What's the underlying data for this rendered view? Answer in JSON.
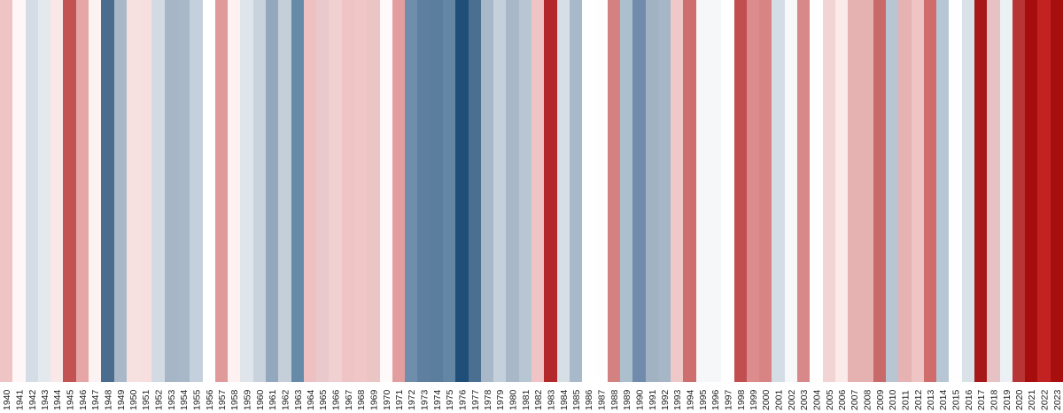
{
  "chart_data": {
    "type": "heatmap",
    "title": "",
    "xlabel": "",
    "ylabel": "",
    "categories": [
      "1940",
      "1941",
      "1942",
      "1943",
      "1944",
      "1945",
      "1946",
      "1947",
      "1948",
      "1949",
      "1950",
      "1951",
      "1952",
      "1953",
      "1954",
      "1955",
      "1956",
      "1957",
      "1958",
      "1959",
      "1960",
      "1961",
      "1962",
      "1963",
      "1964",
      "1965",
      "1966",
      "1967",
      "1968",
      "1969",
      "1970",
      "1971",
      "1972",
      "1973",
      "1974",
      "1975",
      "1976",
      "1977",
      "1978",
      "1979",
      "1980",
      "1981",
      "1982",
      "1983",
      "1984",
      "1985",
      "1986",
      "1987",
      "1988",
      "1989",
      "1990",
      "1991",
      "1992",
      "1993",
      "1994",
      "1995",
      "1996",
      "1997",
      "1998",
      "1999",
      "2000",
      "2001",
      "2002",
      "2003",
      "2004",
      "2005",
      "2006",
      "2007",
      "2008",
      "2009",
      "2010",
      "2011",
      "2012",
      "2013",
      "2014",
      "2015",
      "2016",
      "2017",
      "2018",
      "2019",
      "2020",
      "2021",
      "2022",
      "2023"
    ],
    "colors": [
      "#efc4c4",
      "#fff7f7",
      "#d4dde5",
      "#e4e9ee",
      "#fae8e8",
      "#c35252",
      "#e6a6a6",
      "#fdf2f2",
      "#4a6c8f",
      "#a8b8c8",
      "#f7e0e0",
      "#f7dfe0",
      "#d2dbe3",
      "#a6b6c7",
      "#a8b8c8",
      "#c4d0db",
      "#ffffff",
      "#e09a9a",
      "#fdf1f1",
      "#dfe5eb",
      "#c9d3dd",
      "#94a8bd",
      "#c4cfda",
      "#668ba8",
      "#efc0c2",
      "#e9c9cb",
      "#f0d0d0",
      "#efc4c4",
      "#f0c6c6",
      "#ebc4c4",
      "#fff9f9",
      "#e29e9e",
      "#6f8eab",
      "#5e7f9f",
      "#5b7e9e",
      "#6386a5",
      "#1f4e79",
      "#4a6f91",
      "#a8b8c8",
      "#c4d0db",
      "#a8b8c8",
      "#b8c5d3",
      "#f0c4c4",
      "#b3282b",
      "#d6dee6",
      "#a8bac9",
      "#ffffff",
      "#fefefe",
      "#d48181",
      "#acbfcc",
      "#708bab",
      "#a1b2c3",
      "#a5b6c6",
      "#efc8c8",
      "#cf6e6e",
      "#f5f7f9",
      "#f5f7f9",
      "#ffffff",
      "#c24f4f",
      "#dc8c8c",
      "#d88484",
      "#d4dde5",
      "#f6f8fa",
      "#d88888",
      "#fefefe",
      "#f3d4d4",
      "#fbeaea",
      "#e6b1b1",
      "#e6b1b1",
      "#c86a6a",
      "#b8c6d4",
      "#e6b2b2",
      "#efc4c4",
      "#d06c6c",
      "#b6c6d4",
      "#fefefe",
      "#d9e1e9",
      "#a71818",
      "#e6c2c4",
      "#ebf0f4",
      "#b83535",
      "#a70d0d",
      "#c32222",
      "#a70f0f"
    ]
  }
}
